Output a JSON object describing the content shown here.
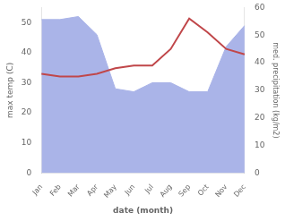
{
  "chart_data": {
    "type": "line",
    "xlabel": "date (month)",
    "ylabel": "max temp (C)",
    "y2label": "med. precipitation (kg/m2)",
    "categories": [
      "Jan",
      "Feb",
      "Mar",
      "Apr",
      "May",
      "Jun",
      "Jul",
      "Aug",
      "Sep",
      "Oct",
      "Nov",
      "Dec"
    ],
    "series": [
      {
        "type": "area",
        "color": "#aab4e8",
        "values": [
          51,
          51,
          52,
          46,
          28,
          27,
          30,
          30,
          27,
          27,
          42,
          49
        ]
      },
      {
        "type": "line",
        "color": "#c0474a",
        "axis": "y2",
        "values": [
          36,
          35,
          35,
          36,
          38,
          39,
          39,
          45,
          56,
          51,
          45,
          43
        ]
      }
    ],
    "ylim": [
      0,
      55
    ],
    "yticks": [
      0,
      10,
      20,
      30,
      40,
      50
    ],
    "y2lim": [
      0,
      60
    ],
    "y2ticks": [
      0,
      10,
      20,
      30,
      40,
      50,
      60
    ],
    "grid": false
  }
}
